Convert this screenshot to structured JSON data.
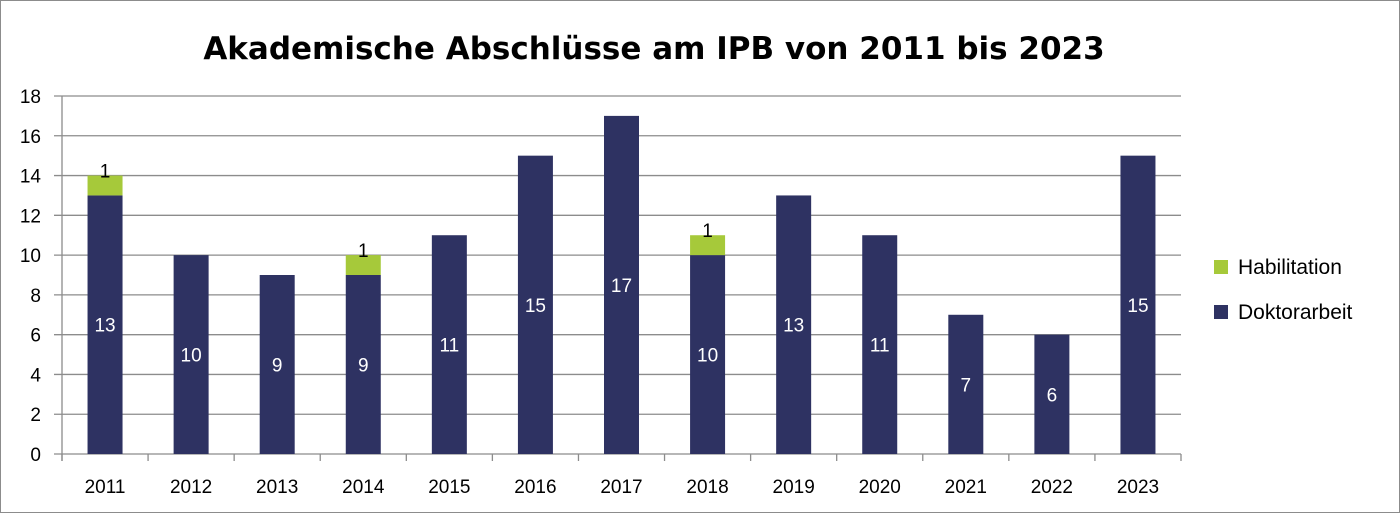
{
  "chart_data": {
    "type": "bar",
    "stacked": true,
    "title": "Akademische Abschlüsse am IPB von 2011 bis 2023",
    "xlabel": "",
    "ylabel": "",
    "categories": [
      "2011",
      "2012",
      "2013",
      "2014",
      "2015",
      "2016",
      "2017",
      "2018",
      "2019",
      "2020",
      "2021",
      "2022",
      "2023"
    ],
    "series": [
      {
        "name": "Doktorarbeit",
        "color": "#2e3262",
        "values": [
          13,
          10,
          9,
          9,
          11,
          15,
          17,
          10,
          13,
          11,
          7,
          6,
          15
        ]
      },
      {
        "name": "Habilitation",
        "color": "#a6c93a",
        "values": [
          1,
          0,
          0,
          1,
          0,
          0,
          0,
          1,
          0,
          0,
          0,
          0,
          0
        ]
      }
    ],
    "ylim": [
      0,
      18
    ],
    "yticks": [
      0,
      2,
      4,
      6,
      8,
      10,
      12,
      14,
      16,
      18
    ],
    "grid": true,
    "legend": "right"
  }
}
